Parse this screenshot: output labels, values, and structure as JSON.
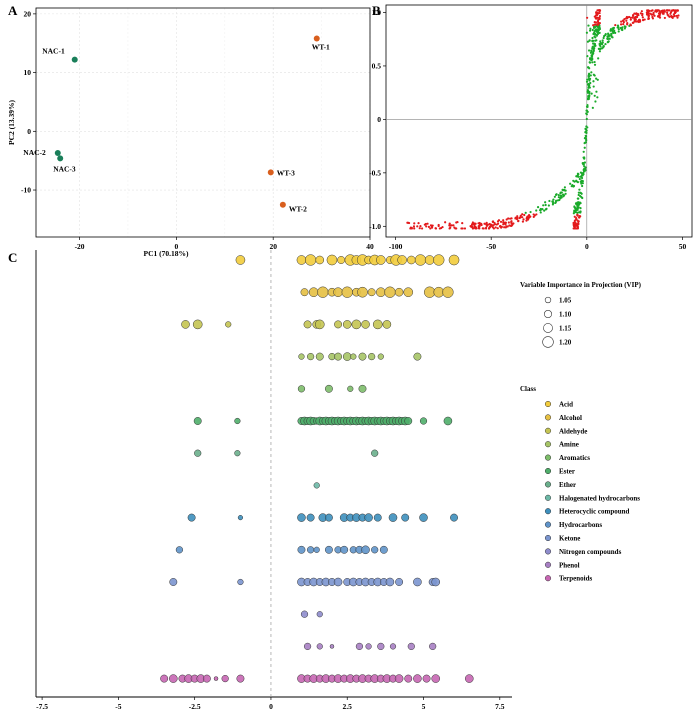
{
  "chart_data": [
    {
      "panel": "A",
      "type": "scatter",
      "xlabel": "PC1 (70.18%)",
      "ylabel": "PC2 (13.39%)",
      "xlim": [
        -29,
        40
      ],
      "ylim": [
        -18,
        21
      ],
      "xticks": [
        -20,
        0,
        20,
        40
      ],
      "yticks": [
        -10,
        0,
        10,
        20
      ],
      "tick_labels_x": [
        "-20",
        "0",
        "20",
        "40"
      ],
      "tick_labels_y": [
        "-10",
        "0",
        "10",
        "20"
      ],
      "grid": true,
      "groups": [
        {
          "group": "NAC",
          "color": "#1a7f5a"
        },
        {
          "group": "WT",
          "color": "#d95f1e"
        }
      ],
      "points": [
        {
          "label": "NAC-1",
          "x": -21,
          "y": 12.2,
          "group": "NAC"
        },
        {
          "label": "NAC-2",
          "x": -24.5,
          "y": -3.7,
          "group": "NAC"
        },
        {
          "label": "NAC-3",
          "x": -24,
          "y": -4.6,
          "group": "NAC"
        },
        {
          "label": "WT-1",
          "x": 29,
          "y": 15.8,
          "group": "WT"
        },
        {
          "label": "WT-3",
          "x": 19.5,
          "y": -7,
          "group": "WT"
        },
        {
          "label": "WT-2",
          "x": 22,
          "y": -12.5,
          "group": "WT"
        }
      ]
    },
    {
      "panel": "B",
      "type": "scatter",
      "xlim": [
        -105,
        55
      ],
      "ylim": [
        -1.1,
        1.07
      ],
      "xticks": [
        -100,
        -50,
        0,
        50
      ],
      "yticks": [
        -1,
        -0.5,
        0,
        0.5,
        1
      ],
      "tick_labels_x": [
        "-100",
        "-50",
        "0",
        "50"
      ],
      "tick_labels_y": [
        "-1.0",
        "-0.5",
        "0",
        "0.5",
        "1.0"
      ],
      "reference_lines": {
        "x": 0,
        "y": 0
      },
      "colors": {
        "high": "#e31a1c",
        "low": "#1aaa2a"
      },
      "generator": {
        "seed": 7,
        "count": 800
      }
    },
    {
      "panel": "C",
      "type": "scatter",
      "xlim": [
        -7.7,
        7.9
      ],
      "xticks": [
        -7.5,
        -5,
        -2.5,
        0,
        2.5,
        5,
        7.5
      ],
      "tick_labels_x": [
        "-7.5",
        "-5",
        "-2.5",
        "0",
        "2.5",
        "5",
        "7.5"
      ],
      "reference_line": 0,
      "size_legend": {
        "title": "Variable Importance in Projection (VIP)",
        "values": [
          "1.05",
          "1.10",
          "1.15",
          "1.20"
        ]
      },
      "class_legend": {
        "title": "Class",
        "entries": [
          {
            "name": "Acid",
            "color": "#f2cc3c"
          },
          {
            "name": "Alcohol",
            "color": "#e6c043"
          },
          {
            "name": "Aldehyde",
            "color": "#c4c452"
          },
          {
            "name": "Amine",
            "color": "#a6c466"
          },
          {
            "name": "Aromatics",
            "color": "#7dbd6a"
          },
          {
            "name": "Ester",
            "color": "#4fae6a"
          },
          {
            "name": "Ether",
            "color": "#6aaf8c"
          },
          {
            "name": "Halogenated hydrocarbons",
            "color": "#6cb8a6"
          },
          {
            "name": "Heterocyclic compound",
            "color": "#3d8fbd"
          },
          {
            "name": "Hydrocarbons",
            "color": "#5f93c9"
          },
          {
            "name": "Ketone",
            "color": "#7b95cf"
          },
          {
            "name": "Nitrogen compounds",
            "color": "#8e8ccc"
          },
          {
            "name": "Phenol",
            "color": "#a77fc3"
          },
          {
            "name": "Terpenoids",
            "color": "#c766b3"
          }
        ]
      },
      "rows": [
        {
          "class": "Acid",
          "x": [
            -1.0,
            1.0,
            1.3,
            1.6,
            2.0,
            2.3,
            2.6,
            2.8,
            3.0,
            3.2,
            3.4,
            3.6,
            3.9,
            4.1,
            4.3,
            4.6,
            4.9,
            5.2,
            5.5,
            6.0
          ],
          "s": [
            1.15,
            1.15,
            1.2,
            1.12,
            1.18,
            1.1,
            1.2,
            1.15,
            1.2,
            1.12,
            1.18,
            1.15,
            1.1,
            1.2,
            1.15,
            1.12,
            1.2,
            1.15,
            1.2,
            1.18
          ]
        },
        {
          "class": "Alcohol",
          "x": [
            1.1,
            1.4,
            1.7,
            2.0,
            2.2,
            2.5,
            2.8,
            3.0,
            3.3,
            3.6,
            3.9,
            4.2,
            4.5,
            5.2,
            5.5,
            5.8
          ],
          "s": [
            1.1,
            1.15,
            1.2,
            1.12,
            1.15,
            1.2,
            1.12,
            1.18,
            1.1,
            1.15,
            1.2,
            1.12,
            1.15,
            1.2,
            1.18,
            1.2
          ]
        },
        {
          "class": "Aldehyde",
          "x": [
            -2.8,
            -2.4,
            -1.4,
            1.2,
            1.5,
            1.6,
            2.2,
            2.5,
            2.8,
            3.1,
            3.5,
            3.8
          ],
          "s": [
            1.12,
            1.15,
            1.05,
            1.1,
            1.12,
            1.15,
            1.1,
            1.12,
            1.15,
            1.12,
            1.15,
            1.12
          ]
        },
        {
          "class": "Amine",
          "x": [
            1.0,
            1.3,
            1.6,
            2.0,
            2.2,
            2.5,
            2.7,
            3.0,
            3.3,
            3.6,
            4.8
          ],
          "s": [
            1.05,
            1.08,
            1.1,
            1.08,
            1.1,
            1.12,
            1.05,
            1.1,
            1.08,
            1.05,
            1.1
          ]
        },
        {
          "class": "Aromatics",
          "x": [
            1.0,
            1.9,
            2.6,
            3.0
          ],
          "s": [
            1.08,
            1.1,
            1.05,
            1.1
          ]
        },
        {
          "class": "Ester",
          "x": [
            -2.4,
            -1.1,
            1.0,
            1.1,
            1.2,
            1.3,
            1.4,
            1.5,
            1.6,
            1.7,
            1.8,
            1.9,
            2.0,
            2.1,
            2.2,
            2.3,
            2.4,
            2.5,
            2.6,
            2.7,
            2.8,
            2.9,
            3.0,
            3.1,
            3.2,
            3.3,
            3.4,
            3.5,
            3.6,
            3.7,
            3.8,
            3.9,
            4.0,
            4.1,
            4.2,
            4.3,
            4.4,
            4.5,
            5.0,
            5.8
          ],
          "s": [
            1.1,
            1.05,
            1.1,
            1.12,
            1.1,
            1.12,
            1.1,
            1.08,
            1.12,
            1.1,
            1.12,
            1.1,
            1.12,
            1.1,
            1.12,
            1.1,
            1.12,
            1.1,
            1.12,
            1.1,
            1.12,
            1.1,
            1.12,
            1.1,
            1.12,
            1.1,
            1.12,
            1.1,
            1.12,
            1.1,
            1.12,
            1.1,
            1.12,
            1.1,
            1.12,
            1.1,
            1.12,
            1.1,
            1.08,
            1.12
          ]
        },
        {
          "class": "Ether",
          "x": [
            -2.4,
            -1.1,
            3.4
          ],
          "s": [
            1.08,
            1.05,
            1.08
          ]
        },
        {
          "class": "Halogenated hydrocarbons",
          "x": [
            1.5
          ],
          "s": [
            1.05
          ]
        },
        {
          "class": "Heterocyclic compound",
          "x": [
            -2.6,
            -1.0,
            1.0,
            1.3,
            1.7,
            1.9,
            2.4,
            2.6,
            2.8,
            3.0,
            3.2,
            3.5,
            4.0,
            4.4,
            5.0,
            6.0
          ],
          "s": [
            1.1,
            1.02,
            1.12,
            1.1,
            1.12,
            1.1,
            1.12,
            1.1,
            1.12,
            1.1,
            1.12,
            1.1,
            1.12,
            1.1,
            1.12,
            1.1
          ]
        },
        {
          "class": "Hydrocarbons",
          "x": [
            -3.0,
            1.0,
            1.3,
            1.5,
            1.9,
            2.2,
            2.4,
            2.7,
            2.9,
            3.1,
            3.4,
            3.7
          ],
          "s": [
            1.08,
            1.1,
            1.08,
            1.05,
            1.1,
            1.08,
            1.1,
            1.08,
            1.1,
            1.12,
            1.08,
            1.1
          ]
        },
        {
          "class": "Ketone",
          "x": [
            -3.2,
            -1.0,
            1.0,
            1.2,
            1.4,
            1.6,
            1.8,
            2.0,
            2.2,
            2.5,
            2.7,
            2.9,
            3.1,
            3.3,
            3.5,
            3.7,
            3.9,
            4.2,
            4.8,
            5.3,
            5.4
          ],
          "s": [
            1.1,
            1.05,
            1.12,
            1.1,
            1.12,
            1.1,
            1.12,
            1.1,
            1.12,
            1.1,
            1.12,
            1.1,
            1.12,
            1.1,
            1.12,
            1.1,
            1.12,
            1.1,
            1.12,
            1.1,
            1.12
          ]
        },
        {
          "class": "Nitrogen compounds",
          "x": [
            1.1,
            1.6
          ],
          "s": [
            1.08,
            1.05
          ]
        },
        {
          "class": "Phenol",
          "x": [
            1.2,
            1.6,
            2.0,
            2.9,
            3.2,
            3.6,
            4.0,
            4.6,
            5.3
          ],
          "s": [
            1.08,
            1.05,
            1.0,
            1.08,
            1.05,
            1.08,
            1.05,
            1.08,
            1.08
          ]
        },
        {
          "class": "Terpenoids",
          "x": [
            -3.5,
            -3.2,
            -2.9,
            -2.7,
            -2.5,
            -2.3,
            -2.1,
            -1.8,
            -1.5,
            -1.0,
            1.0,
            1.2,
            1.4,
            1.6,
            1.8,
            2.0,
            2.2,
            2.4,
            2.6,
            2.8,
            3.0,
            3.2,
            3.4,
            3.6,
            3.8,
            4.0,
            4.2,
            4.5,
            4.8,
            5.1,
            5.4,
            6.5
          ],
          "s": [
            1.1,
            1.12,
            1.1,
            1.12,
            1.1,
            1.12,
            1.1,
            1.0,
            1.08,
            1.1,
            1.12,
            1.1,
            1.12,
            1.1,
            1.12,
            1.1,
            1.12,
            1.1,
            1.12,
            1.1,
            1.12,
            1.1,
            1.12,
            1.1,
            1.12,
            1.1,
            1.12,
            1.1,
            1.12,
            1.1,
            1.12,
            1.12
          ]
        }
      ]
    }
  ]
}
